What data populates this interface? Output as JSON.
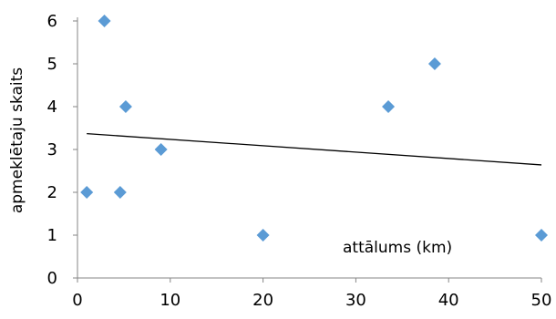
{
  "chart_data": {
    "type": "scatter",
    "title": "",
    "xlabel": "attālums (km)",
    "ylabel": "apmeklētaju skaits",
    "xlim": [
      0,
      50
    ],
    "ylim": [
      0,
      6
    ],
    "x_ticks": [
      0,
      10,
      20,
      30,
      40,
      50
    ],
    "y_ticks": [
      0,
      1,
      2,
      3,
      4,
      5,
      6
    ],
    "grid": false,
    "legend": "none",
    "marker": "diamond",
    "series": [
      {
        "points": [
          {
            "x": 1,
            "y": 2
          },
          {
            "x": 2.9,
            "y": 6
          },
          {
            "x": 4.6,
            "y": 2
          },
          {
            "x": 5.2,
            "y": 4
          },
          {
            "x": 9,
            "y": 3
          },
          {
            "x": 20,
            "y": 1
          },
          {
            "x": 33.5,
            "y": 4
          },
          {
            "x": 38.5,
            "y": 5
          },
          {
            "x": 50,
            "y": 1
          }
        ],
        "color": "#5b9bd5"
      }
    ],
    "trendline": {
      "type": "linear",
      "color": "#000000",
      "x_start": 1,
      "y_start": 3.37,
      "x_end": 50,
      "y_end": 2.64
    }
  }
}
